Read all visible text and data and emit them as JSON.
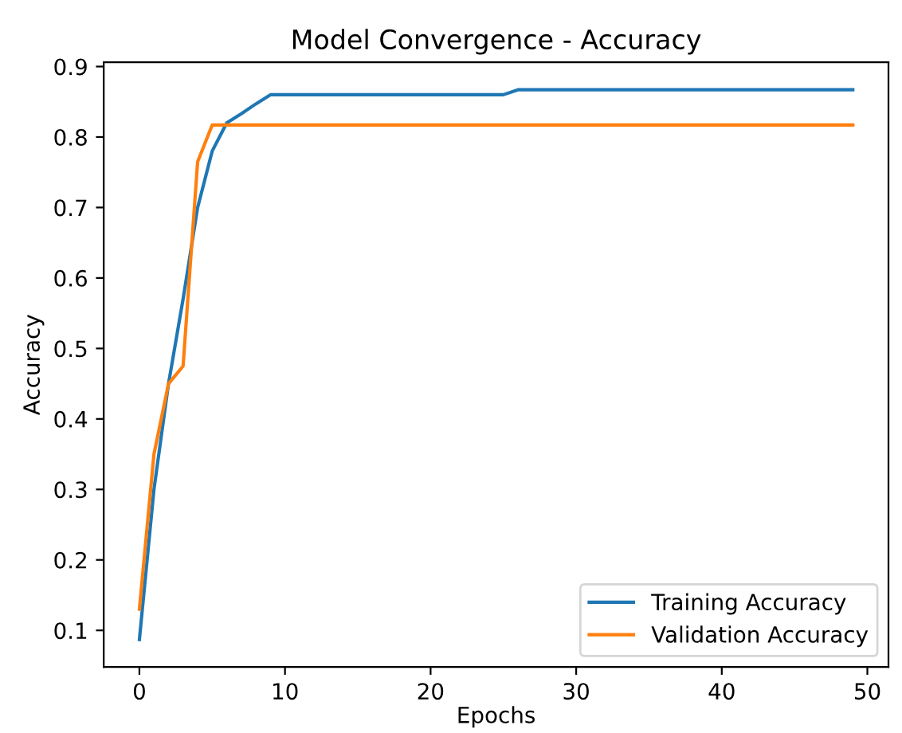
{
  "chart_data": {
    "type": "line",
    "title": "Model Convergence - Accuracy",
    "xlabel": "Epochs",
    "ylabel": "Accuracy",
    "x": [
      0,
      1,
      2,
      3,
      4,
      5,
      6,
      7,
      8,
      9,
      10,
      11,
      12,
      13,
      14,
      15,
      16,
      17,
      18,
      19,
      20,
      21,
      22,
      23,
      24,
      25,
      26,
      27,
      28,
      29,
      30,
      31,
      32,
      33,
      34,
      35,
      36,
      37,
      38,
      39,
      40,
      41,
      42,
      43,
      44,
      45,
      46,
      47,
      48,
      49
    ],
    "series": [
      {
        "name": "Training Accuracy",
        "color": "#1f77b4",
        "values": [
          0.087,
          0.3,
          0.45,
          0.57,
          0.7,
          0.78,
          0.82,
          0.833,
          0.847,
          0.86,
          0.86,
          0.86,
          0.86,
          0.86,
          0.86,
          0.86,
          0.86,
          0.86,
          0.86,
          0.86,
          0.86,
          0.86,
          0.86,
          0.86,
          0.86,
          0.86,
          0.867,
          0.867,
          0.867,
          0.867,
          0.867,
          0.867,
          0.867,
          0.867,
          0.867,
          0.867,
          0.867,
          0.867,
          0.867,
          0.867,
          0.867,
          0.867,
          0.867,
          0.867,
          0.867,
          0.867,
          0.867,
          0.867,
          0.867,
          0.867
        ]
      },
      {
        "name": "Validation Accuracy",
        "color": "#ff7f0e",
        "values": [
          0.13,
          0.35,
          0.45,
          0.475,
          0.765,
          0.817,
          0.817,
          0.817,
          0.817,
          0.817,
          0.817,
          0.817,
          0.817,
          0.817,
          0.817,
          0.817,
          0.817,
          0.817,
          0.817,
          0.817,
          0.817,
          0.817,
          0.817,
          0.817,
          0.817,
          0.817,
          0.817,
          0.817,
          0.817,
          0.817,
          0.817,
          0.817,
          0.817,
          0.817,
          0.817,
          0.817,
          0.817,
          0.817,
          0.817,
          0.817,
          0.817,
          0.817,
          0.817,
          0.817,
          0.817,
          0.817,
          0.817,
          0.817,
          0.817,
          0.817
        ]
      }
    ],
    "xlim": [
      -2.45,
      51.45
    ],
    "xticks": [
      0,
      10,
      20,
      30,
      40,
      50
    ],
    "ylim": [
      0.048,
      0.906
    ],
    "yticks": [
      0.1,
      0.2,
      0.3,
      0.4,
      0.5,
      0.6,
      0.7,
      0.8,
      0.9
    ],
    "grid": false,
    "legend": "bottom right",
    "marker": "none",
    "line_style": "solid"
  }
}
